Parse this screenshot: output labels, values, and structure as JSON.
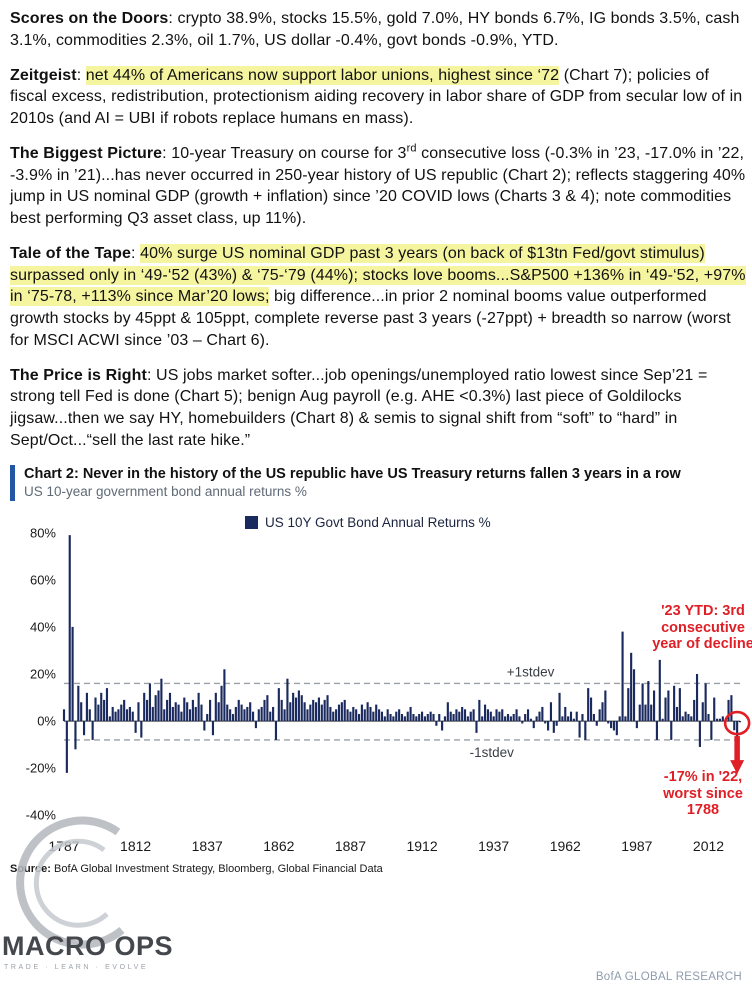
{
  "page": {
    "source_label": "Source:",
    "source_text": "  BofA Global Investment Strategy, Bloomberg, Global Financial Data",
    "brand_footer": "BofA GLOBAL RESEARCH"
  },
  "watermark": {
    "title": "MACRO OPS",
    "tagline": "TRADE · LEARN · EVOLVE"
  },
  "paragraphs": {
    "p1": {
      "lead": "Scores on the Doors",
      "body": ": crypto 38.9%, stocks 15.5%, gold 7.0%, HY bonds 6.7%, IG bonds 3.5%, cash 3.1%, commodities 2.3%, oil 1.7%, US dollar -0.4%, govt bonds -0.9%, YTD."
    },
    "p2": {
      "lead": "Zeitgeist",
      "colon": ": ",
      "highlight": "net 44% of Americans now support labor unions, highest since ‘72",
      "rest": " (Chart 7); policies of fiscal excess, redistribution, protectionism aiding recovery in labor share of GDP from secular low of in 2010s (and AI = UBI if robots replace humans en mass)."
    },
    "p3": {
      "lead": "The Biggest Picture",
      "pre_sup": ": 10-year Treasury on course for 3",
      "sup": "rd",
      "post_sup": " consecutive loss (-0.3% in ’23, -17.0% in ’22, -3.9% in ’21)...has never occurred in 250-year history of US republic (Chart 2); reflects staggering 40% jump in US nominal GDP (growth + inflation) since ’20 COVID lows (Charts 3 & 4); note commodities best performing Q3 asset class, up 11%)."
    },
    "p4": {
      "lead": "Tale of the Tape",
      "colon": ": ",
      "highlight": "40% surge US nominal GDP past 3 years (on back of $13tn Fed/govt stimulus) surpassed only in ‘49-‘52 (43%) & ‘75-‘79 (44%); stocks love booms...S&P500 +136% in ‘49-‘52, +97% in ‘75-78, +113% since Mar’20 lows;",
      "rest": " big difference...in prior 2 nominal booms value outperformed growth stocks by 45ppt & 105ppt, complete reverse past 3 years (-27ppt) + breadth so narrow (worst for MSCI ACWI since ’03 – Chart 6)."
    },
    "p5": {
      "lead": "The Price is Right",
      "body": ": US jobs market softer...job openings/unemployed ratio lowest since Sep’21 = strong tell Fed is done (Chart 5); benign Aug payroll (e.g. AHE <0.3%) last piece of Goldilocks jigsaw...then we say HY, homebuilders (Chart 8) & semis to signal shift from “soft” to “hard” in Sept/Oct...“sell the last rate hike.”"
    }
  },
  "chart": {
    "title": "Chart 2: Never in the history of the US republic have US Treasury returns fallen 3 years in a row",
    "subtitle": "US 10-year government bond annual returns %",
    "legend": "US 10Y Govt Bond Annual Returns %",
    "accent_red": "#e01e25",
    "annotations": {
      "stdev_plus": "+1stdev",
      "stdev_minus": "-1stdev",
      "note_top": "'23 YTD: 3rd consecutive year of decline",
      "note_bottom": "-17% in '22, worst since 1788"
    }
  },
  "chart_data": {
    "type": "bar",
    "title": "US 10Y Govt Bond Annual Returns %",
    "ylabel": "annual return %",
    "start_year": 1787,
    "end_year": 2023,
    "x_ticks": [
      1787,
      1812,
      1837,
      1862,
      1887,
      1912,
      1937,
      1962,
      1987,
      2012
    ],
    "y_ticks": [
      80,
      60,
      40,
      20,
      0,
      -20,
      -40
    ],
    "ylim": [
      -45,
      85
    ],
    "stdev_plus": 16,
    "stdev_minus": -8,
    "bar_color": "#1b2a5e",
    "grid": false,
    "legend_position": "top-center",
    "values": [
      5,
      -22,
      79,
      40,
      -12,
      15,
      8,
      -6,
      12,
      5,
      -8,
      10,
      7,
      12,
      9,
      14,
      2,
      6,
      4,
      5,
      7,
      9,
      5,
      6,
      4,
      -5,
      8,
      -7,
      12,
      9,
      16,
      6,
      11,
      13,
      18,
      5,
      9,
      12,
      6,
      8,
      7,
      4,
      10,
      8,
      5,
      9,
      6,
      12,
      7,
      -4,
      3,
      9,
      -6,
      12,
      8,
      15,
      22,
      7,
      5,
      3,
      6,
      9,
      7,
      5,
      6,
      8,
      4,
      -3,
      5,
      6,
      9,
      11,
      4,
      6,
      -8,
      14,
      9,
      5,
      18,
      8,
      12,
      10,
      13,
      11,
      8,
      5,
      7,
      9,
      8,
      10,
      7,
      9,
      11,
      6,
      4,
      5,
      7,
      8,
      9,
      5,
      4,
      6,
      5,
      3,
      7,
      5,
      8,
      6,
      4,
      7,
      5,
      4,
      2,
      5,
      3,
      2,
      4,
      5,
      3,
      2,
      4,
      6,
      3,
      2,
      3,
      4,
      2,
      3,
      4,
      3,
      -2,
      3,
      -4,
      2,
      8,
      4,
      3,
      5,
      4,
      6,
      5,
      2,
      4,
      5,
      -5,
      9,
      2,
      7,
      5,
      4,
      2,
      5,
      4,
      5,
      2,
      3,
      2,
      3,
      5,
      2,
      -1,
      3,
      5,
      1,
      -3,
      2,
      4,
      6,
      -1,
      -4,
      8,
      -5,
      -2,
      12,
      2,
      6,
      2,
      4,
      1,
      4,
      -7,
      3,
      -8,
      14,
      10,
      3,
      -2,
      5,
      8,
      13,
      -1,
      -3,
      -4,
      -6,
      2,
      38,
      2,
      14,
      29,
      22,
      -3,
      7,
      16,
      7,
      17,
      7,
      13,
      -8,
      26,
      1,
      10,
      13,
      -8,
      15,
      6,
      14,
      2,
      4,
      3,
      2,
      9,
      20,
      -11,
      8,
      16,
      3,
      -8,
      10,
      1,
      1,
      2,
      1,
      9,
      11,
      -3.9,
      -17,
      -0.3
    ]
  }
}
